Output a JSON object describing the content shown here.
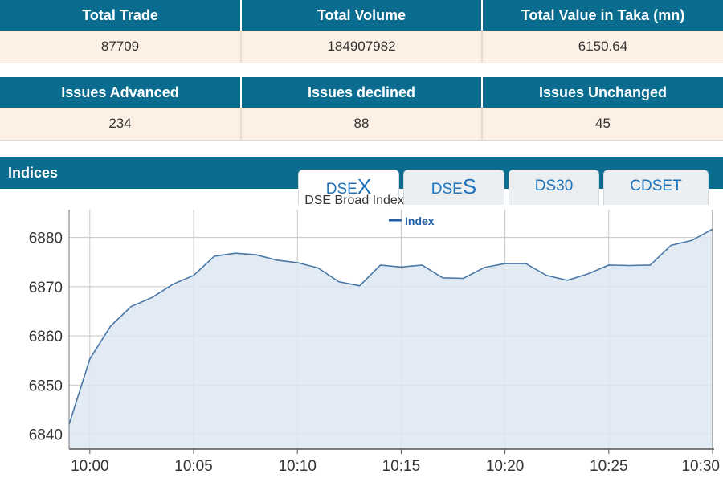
{
  "summary": {
    "headers": [
      "Total Trade",
      "Total Volume",
      "Total Value in Taka (mn)"
    ],
    "values": [
      "87709",
      "184907982",
      "6150.64"
    ]
  },
  "issues": {
    "headers": [
      "Issues Advanced",
      "Issues declined",
      "Issues Unchanged"
    ],
    "values": [
      "234",
      "88",
      "45"
    ]
  },
  "indices": {
    "title": "Indices",
    "tabs": [
      {
        "prefix": "DSE",
        "suffix": "X",
        "active": true
      },
      {
        "prefix": "DSE",
        "suffix": "S",
        "active": false
      },
      {
        "prefix": "DS30",
        "suffix": "",
        "active": false
      },
      {
        "prefix": "CDSET",
        "suffix": "",
        "active": false
      }
    ]
  },
  "colors": {
    "header_bg": "#0a6d8f",
    "row_bg": "#fdf1e6",
    "line": "#4a78a8",
    "area": "#dde7f1",
    "tab_text": "#1d74bd"
  },
  "chart_data": {
    "type": "area",
    "title": "DSE Broad Index",
    "legend": "Index",
    "legend_position": "top-center",
    "grid": true,
    "xlabel": "",
    "ylabel": "",
    "x_ticks": [
      "10:00",
      "10:05",
      "10:10",
      "10:15",
      "10:20",
      "10:25",
      "10:30"
    ],
    "y_ticks": [
      6840,
      6850,
      6860,
      6870,
      6880
    ],
    "ylim": [
      6837,
      6885
    ],
    "x": [
      "09:59",
      "10:00",
      "10:01",
      "10:02",
      "10:03",
      "10:04",
      "10:05",
      "10:06",
      "10:07",
      "10:08",
      "10:09",
      "10:10",
      "10:11",
      "10:12",
      "10:13",
      "10:14",
      "10:15",
      "10:16",
      "10:17",
      "10:18",
      "10:19",
      "10:20",
      "10:21",
      "10:22",
      "10:23",
      "10:24",
      "10:25",
      "10:26",
      "10:27",
      "10:28",
      "10:29",
      "10:30"
    ],
    "series": [
      {
        "name": "Index",
        "values": [
          6842.0,
          6855.3,
          6862.0,
          6866.0,
          6867.8,
          6870.5,
          6872.3,
          6876.2,
          6876.8,
          6876.5,
          6875.4,
          6874.9,
          6873.8,
          6871.0,
          6870.2,
          6874.4,
          6874.0,
          6874.4,
          6871.8,
          6871.7,
          6873.9,
          6874.7,
          6874.7,
          6872.3,
          6871.3,
          6872.6,
          6874.4,
          6874.3,
          6874.4,
          6878.4,
          6879.4,
          6881.7
        ]
      }
    ]
  }
}
